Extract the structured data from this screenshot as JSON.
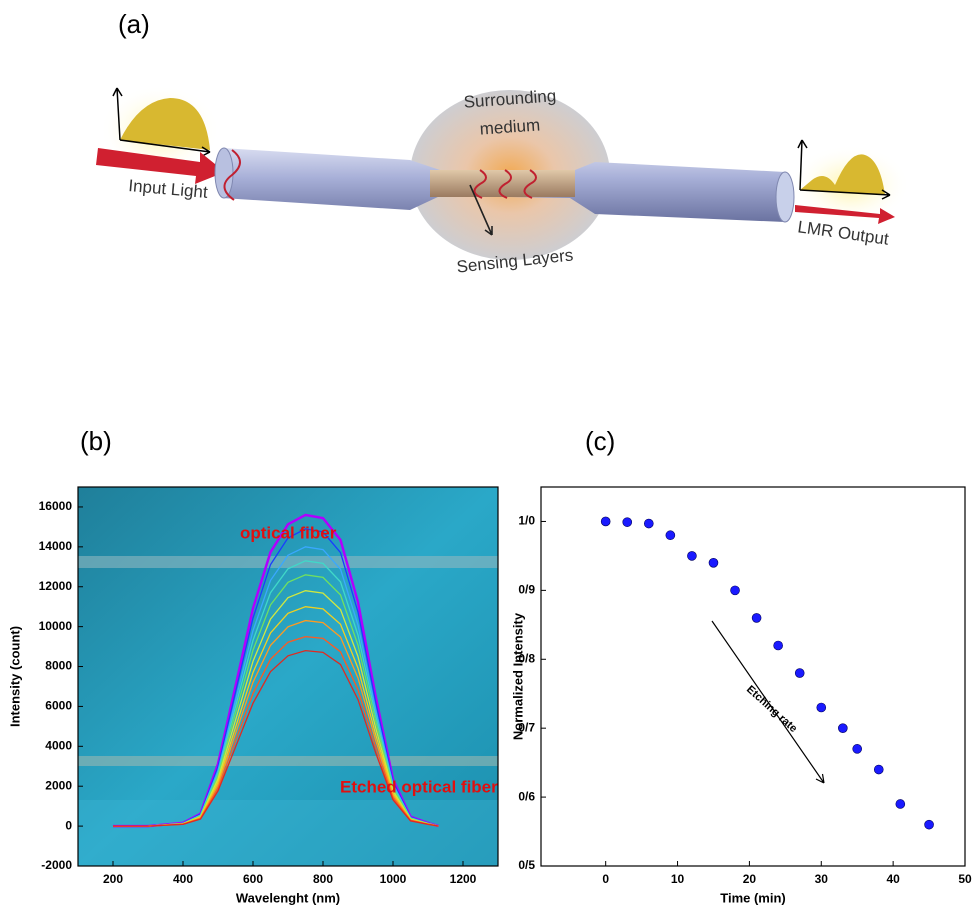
{
  "panel_labels": [
    "(a)",
    "(b)",
    "(c)"
  ],
  "diagram": {
    "labels": [
      "Surrounding",
      "medium",
      "Input Light",
      "Sensing Layers",
      "LMR Output"
    ]
  },
  "chart_data": [
    {
      "type": "line",
      "x_label": "Wavelenght (nm)",
      "y_label": "Intensity (count)",
      "annotations": [
        "optical fiber",
        "Etched optical fiber"
      ],
      "xlim": [
        100,
        1300
      ],
      "xticks": [
        200,
        400,
        600,
        800,
        1000,
        1200
      ],
      "ylim": [
        -2000,
        17000
      ],
      "yticks": [
        -2000,
        0,
        2000,
        4000,
        6000,
        8000,
        10000,
        12000,
        14000,
        16000
      ],
      "x": [
        200,
        300,
        400,
        450,
        500,
        550,
        600,
        650,
        700,
        750,
        800,
        850,
        900,
        950,
        1000,
        1050,
        1100,
        1130
      ],
      "series": [
        {
          "color": "#b000ff",
          "values": [
            0,
            0,
            160,
            620,
            3120,
            7020,
            10920,
            13730,
            15130,
            15600,
            15440,
            14350,
            11230,
            6550,
            2340,
            470,
            160,
            0
          ]
        },
        {
          "color": "#1a3cff",
          "values": [
            0,
            0,
            150,
            600,
            2980,
            6710,
            10430,
            13110,
            14450,
            14900,
            14750,
            13710,
            10730,
            6260,
            2240,
            450,
            150,
            0
          ]
        },
        {
          "color": "#3aa8ff",
          "values": [
            0,
            0,
            140,
            560,
            2800,
            6300,
            9800,
            12320,
            13580,
            14000,
            13860,
            12880,
            10080,
            5880,
            2100,
            420,
            140,
            0
          ]
        },
        {
          "color": "#40d8c8",
          "values": [
            0,
            0,
            130,
            530,
            2660,
            5990,
            9310,
            11700,
            12900,
            13300,
            13170,
            12240,
            9580,
            5590,
            2000,
            400,
            130,
            0
          ]
        },
        {
          "color": "#70e060",
          "values": [
            0,
            0,
            130,
            500,
            2520,
            5670,
            8820,
            11090,
            12220,
            12600,
            12470,
            11590,
            9070,
            5290,
            1890,
            380,
            130,
            0
          ]
        },
        {
          "color": "#d0e840",
          "values": [
            0,
            0,
            120,
            470,
            2360,
            5310,
            8260,
            10380,
            11450,
            11800,
            11680,
            10860,
            8500,
            4960,
            1770,
            350,
            120,
            0
          ]
        },
        {
          "color": "#f0d020",
          "values": [
            0,
            0,
            110,
            440,
            2200,
            4950,
            7700,
            9680,
            10670,
            11000,
            10890,
            10120,
            7920,
            4620,
            1650,
            330,
            110,
            0
          ]
        },
        {
          "color": "#ff9a20",
          "values": [
            0,
            0,
            100,
            410,
            2060,
            4640,
            7210,
            9060,
            9990,
            10300,
            10200,
            9480,
            7420,
            4330,
            1550,
            310,
            100,
            0
          ]
        },
        {
          "color": "#ff5a20",
          "values": [
            0,
            0,
            95,
            380,
            1900,
            4280,
            6650,
            8360,
            9220,
            9500,
            9410,
            8740,
            6840,
            3990,
            1430,
            290,
            95,
            0
          ]
        },
        {
          "color": "#e02a20",
          "values": [
            0,
            0,
            90,
            350,
            1760,
            3960,
            6160,
            7740,
            8540,
            8800,
            8710,
            8100,
            6340,
            3700,
            1320,
            260,
            90,
            0
          ]
        }
      ]
    },
    {
      "type": "scatter",
      "x_label": "Time (min)",
      "y_label": "Normalized Intensity",
      "annotations": [
        "Etching rate"
      ],
      "xlim": [
        -9,
        50
      ],
      "xticks": [
        0,
        10,
        20,
        30,
        40,
        50
      ],
      "ylim": [
        0.5,
        1.05
      ],
      "yticks": [
        {
          "value": 0.5,
          "label": "0/5"
        },
        {
          "value": 0.6,
          "label": "0/6"
        },
        {
          "value": 0.7,
          "label": "0/7"
        },
        {
          "value": 0.8,
          "label": "0/8"
        },
        {
          "value": 0.9,
          "label": "0/9"
        },
        {
          "value": 1.0,
          "label": "1/0"
        }
      ],
      "color": "#1a1aff",
      "x": [
        0,
        3,
        6,
        9,
        12,
        15,
        18,
        21,
        24,
        27,
        30,
        33,
        35,
        38,
        41,
        45
      ],
      "values": [
        1.0,
        0.999,
        0.997,
        0.98,
        0.95,
        0.94,
        0.9,
        0.86,
        0.82,
        0.78,
        0.73,
        0.7,
        0.67,
        0.64,
        0.59,
        0.56
      ]
    }
  ]
}
